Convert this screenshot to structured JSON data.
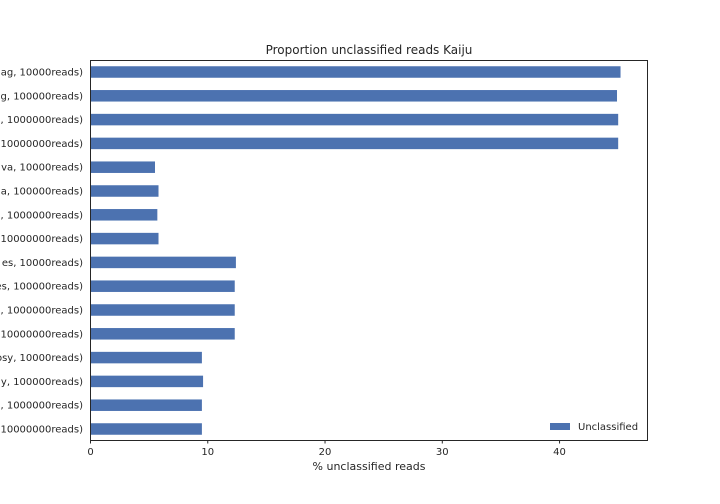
{
  "chart_data": {
    "type": "bar",
    "orientation": "horizontal",
    "title": "Proportion unclassified reads Kaiju",
    "xlabel": "% unclassified reads",
    "ylabel": "",
    "xlim": [
      0,
      47.5
    ],
    "xticks": [
      0,
      10,
      20,
      30,
      40
    ],
    "grid": false,
    "legend_position": "lower-right",
    "categories": [
      "ag, 10000reads)",
      "g, 100000reads)",
      ", 1000000reads)",
      "10000000reads)",
      "va, 10000reads)",
      "a, 100000reads)",
      ", 1000000reads)",
      "10000000reads)",
      "es, 10000reads)",
      "es, 100000reads)",
      ", 1000000reads)",
      "10000000reads)",
      "osy, 10000reads)",
      "y, 100000reads)",
      ", 1000000reads)",
      "10000000reads)"
    ],
    "series": [
      {
        "name": "Unclassified",
        "color": "#4c72b0",
        "values": [
          45.2,
          44.9,
          45.0,
          45.0,
          5.5,
          5.8,
          5.7,
          5.8,
          12.4,
          12.3,
          12.3,
          12.3,
          9.5,
          9.6,
          9.5,
          9.5
        ]
      }
    ]
  }
}
